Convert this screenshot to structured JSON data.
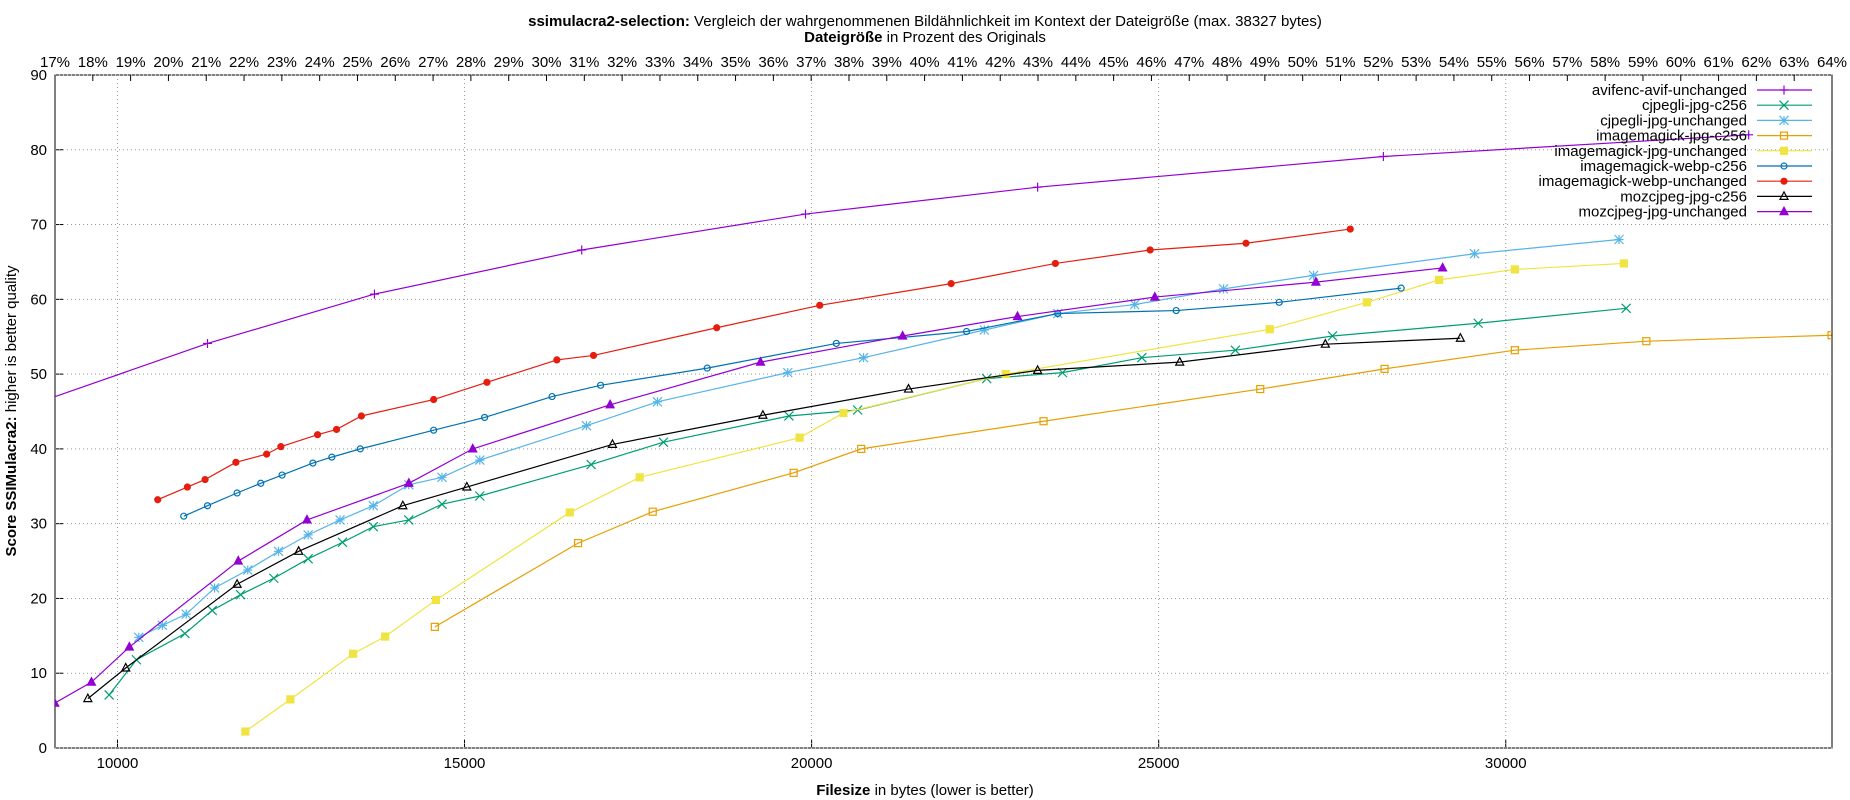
{
  "chart_data": {
    "type": "line",
    "title_bold": "ssimulacra2-selection:",
    "title_rest": "Vergleich der wahrgenommenen Bildähnlichkeit im Kontext der Dateigröße (max. 38327 bytes)",
    "x2label_bold": "Dateigröße",
    "x2label_rest": "in Prozent des Originals",
    "xlabel_bold": "Filesize",
    "xlabel_rest": "in bytes (lower is better)",
    "ylabel_bold": "Score SSIMulacra2:",
    "ylabel_rest": "higher is better quality",
    "xlim": [
      9100,
      34700
    ],
    "ylim": [
      0,
      90
    ],
    "grid": true,
    "legend": "top-right",
    "xticks": [
      10000,
      15000,
      20000,
      25000,
      30000
    ],
    "yticks": [
      0,
      10,
      20,
      30,
      40,
      50,
      60,
      70,
      80,
      90
    ],
    "x2lim": [
      17,
      64
    ],
    "x2ticks": [
      {
        "value": 17,
        "label": "17%"
      },
      {
        "value": 18,
        "label": "18%"
      },
      {
        "value": 19,
        "label": "19%"
      },
      {
        "value": 20,
        "label": "20%"
      },
      {
        "value": 21,
        "label": "21%"
      },
      {
        "value": 22,
        "label": "22%"
      },
      {
        "value": 23,
        "label": "23%"
      },
      {
        "value": 24,
        "label": "24%"
      },
      {
        "value": 25,
        "label": "25%"
      },
      {
        "value": 26,
        "label": "26%"
      },
      {
        "value": 27,
        "label": "27%"
      },
      {
        "value": 28,
        "label": "28%"
      },
      {
        "value": 29,
        "label": "29%"
      },
      {
        "value": 30,
        "label": "30%"
      },
      {
        "value": 31,
        "label": "31%"
      },
      {
        "value": 32,
        "label": "32%"
      },
      {
        "value": 33,
        "label": "33%"
      },
      {
        "value": 34,
        "label": "34%"
      },
      {
        "value": 35,
        "label": "35%"
      },
      {
        "value": 36,
        "label": "36%"
      },
      {
        "value": 37,
        "label": "37%"
      },
      {
        "value": 38,
        "label": "38%"
      },
      {
        "value": 39,
        "label": "39%"
      },
      {
        "value": 40,
        "label": "40%"
      },
      {
        "value": 41,
        "label": "41%"
      },
      {
        "value": 42,
        "label": "42%"
      },
      {
        "value": 43,
        "label": "43%"
      },
      {
        "value": 44,
        "label": "44%"
      },
      {
        "value": 45,
        "label": "45%"
      },
      {
        "value": 46,
        "label": "46%"
      },
      {
        "value": 47,
        "label": "47%"
      },
      {
        "value": 48,
        "label": "48%"
      },
      {
        "value": 49,
        "label": "49%"
      },
      {
        "value": 50,
        "label": "50%"
      },
      {
        "value": 51,
        "label": "51%"
      },
      {
        "value": 52,
        "label": "52%"
      },
      {
        "value": 53,
        "label": "53%"
      },
      {
        "value": 54,
        "label": "54%"
      },
      {
        "value": 55,
        "label": "55%"
      },
      {
        "value": 56,
        "label": "56%"
      },
      {
        "value": 57,
        "label": "57%"
      },
      {
        "value": 58,
        "label": "58%"
      },
      {
        "value": 59,
        "label": "59%"
      },
      {
        "value": 60,
        "label": "60%"
      },
      {
        "value": 61,
        "label": "61%"
      },
      {
        "value": 62,
        "label": "62%"
      },
      {
        "value": 63,
        "label": "63%"
      },
      {
        "value": 64,
        "label": "64%"
      }
    ],
    "series": [
      {
        "name": "avifenc-avif-unchanged",
        "color": "#9400d3",
        "marker": "plus",
        "x": [
          8950,
          11297,
          13702,
          16688,
          19912,
          23256,
          28237,
          33500
        ],
        "values": [
          46.5,
          54.1,
          60.7,
          66.6,
          71.4,
          75.0,
          79.1,
          82.0
        ]
      },
      {
        "name": "cjpegli-jpg-c256",
        "color": "#009e73",
        "marker": "cross",
        "x": [
          9880,
          10273,
          10972,
          11365,
          11774,
          12252,
          12747,
          13241,
          13685,
          14197,
          14675,
          15220,
          16824,
          17865,
          19673,
          20663,
          22522,
          23614,
          24757,
          26105,
          27504,
          29602,
          31735
        ],
        "values": [
          7.1,
          11.8,
          15.3,
          18.4,
          20.5,
          22.7,
          25.3,
          27.5,
          29.6,
          30.5,
          32.6,
          33.7,
          37.9,
          40.9,
          44.4,
          45.2,
          49.4,
          50.2,
          52.2,
          53.2,
          55.1,
          56.8,
          58.8
        ]
      },
      {
        "name": "cjpegli-jpg-unchanged",
        "color": "#56b4e9",
        "marker": "star",
        "x": [
          10307,
          10648,
          10990,
          11399,
          11877,
          12320,
          12747,
          13207,
          13685,
          14197,
          14675,
          15220,
          16756,
          17779,
          19656,
          20748,
          22488,
          23546,
          24654,
          25934,
          27231,
          29551,
          31632
        ],
        "values": [
          14.8,
          16.4,
          17.9,
          21.4,
          23.8,
          26.3,
          28.5,
          30.5,
          32.4,
          35.2,
          36.2,
          38.5,
          43.1,
          46.3,
          50.2,
          52.2,
          55.9,
          58.1,
          59.3,
          61.4,
          63.2,
          66.1,
          68.0
        ]
      },
      {
        "name": "imagemagick-jpg-c256",
        "color": "#e69f00",
        "marker": "square",
        "x": [
          14572,
          16636,
          17711,
          19741,
          20714,
          23341,
          26463,
          28254,
          30131,
          32025,
          34693
        ],
        "values": [
          16.2,
          27.4,
          31.6,
          36.8,
          40.0,
          43.7,
          48.0,
          50.7,
          53.2,
          54.4,
          55.2
        ]
      },
      {
        "name": "imagemagick-jpg-unchanged",
        "color": "#f0e442",
        "marker": "square-filled",
        "x": [
          11842,
          12491,
          13395,
          13856,
          14589,
          16517,
          17523,
          19827,
          20458,
          22795,
          26600,
          27999,
          29039,
          30131,
          31701
        ],
        "values": [
          2.2,
          6.5,
          12.6,
          14.9,
          19.8,
          31.5,
          36.2,
          41.5,
          44.8,
          50.0,
          56.0,
          59.6,
          62.6,
          64.0,
          64.8
        ]
      },
      {
        "name": "imagemagick-webp-c256",
        "color": "#0072b2",
        "marker": "circle",
        "x": [
          10955,
          11297,
          11723,
          12064,
          12371,
          12815,
          13088,
          13497,
          14555,
          15289,
          16261,
          16960,
          18496,
          20356,
          22232,
          23546,
          25252,
          26736,
          28493
        ],
        "values": [
          31.0,
          32.4,
          34.1,
          35.4,
          36.5,
          38.1,
          38.9,
          40.0,
          42.5,
          44.2,
          47.0,
          48.5,
          50.8,
          54.1,
          55.7,
          58.1,
          58.5,
          59.6,
          61.5
        ]
      },
      {
        "name": "imagemagick-webp-unchanged",
        "color": "#e51e10",
        "marker": "circle-filled",
        "x": [
          10580,
          11007,
          11262,
          11706,
          12149,
          12354,
          12883,
          13156,
          13514,
          14555,
          15323,
          16330,
          16858,
          18633,
          20117,
          22010,
          23512,
          24877,
          26258,
          27760
        ],
        "values": [
          33.2,
          34.9,
          35.9,
          38.2,
          39.3,
          40.3,
          41.9,
          42.6,
          44.4,
          46.6,
          48.9,
          51.9,
          52.5,
          56.2,
          59.2,
          62.1,
          64.8,
          66.6,
          67.5,
          69.4
        ]
      },
      {
        "name": "mozcjpeg-jpg-c256",
        "color": "#000000",
        "marker": "triangle",
        "x": [
          9573,
          10119,
          11723,
          12610,
          14111,
          15033,
          17131,
          19298,
          21396,
          23256,
          25303,
          27401,
          29346
        ],
        "values": [
          6.6,
          10.7,
          21.9,
          26.3,
          32.4,
          34.9,
          40.6,
          44.5,
          48.0,
          50.5,
          51.6,
          54.0,
          54.8
        ]
      },
      {
        "name": "mozcjpeg-jpg-unchanged",
        "color": "#9400d3",
        "marker": "triangle-filled",
        "x": [
          9096,
          9625,
          10171,
          11740,
          12730,
          14197,
          15118,
          17097,
          19264,
          21311,
          22966,
          24944,
          27265,
          29090
        ],
        "values": [
          6.0,
          8.8,
          13.5,
          25.0,
          30.5,
          35.4,
          40.0,
          45.9,
          51.6,
          55.1,
          57.7,
          60.3,
          62.3,
          64.2
        ]
      }
    ]
  }
}
